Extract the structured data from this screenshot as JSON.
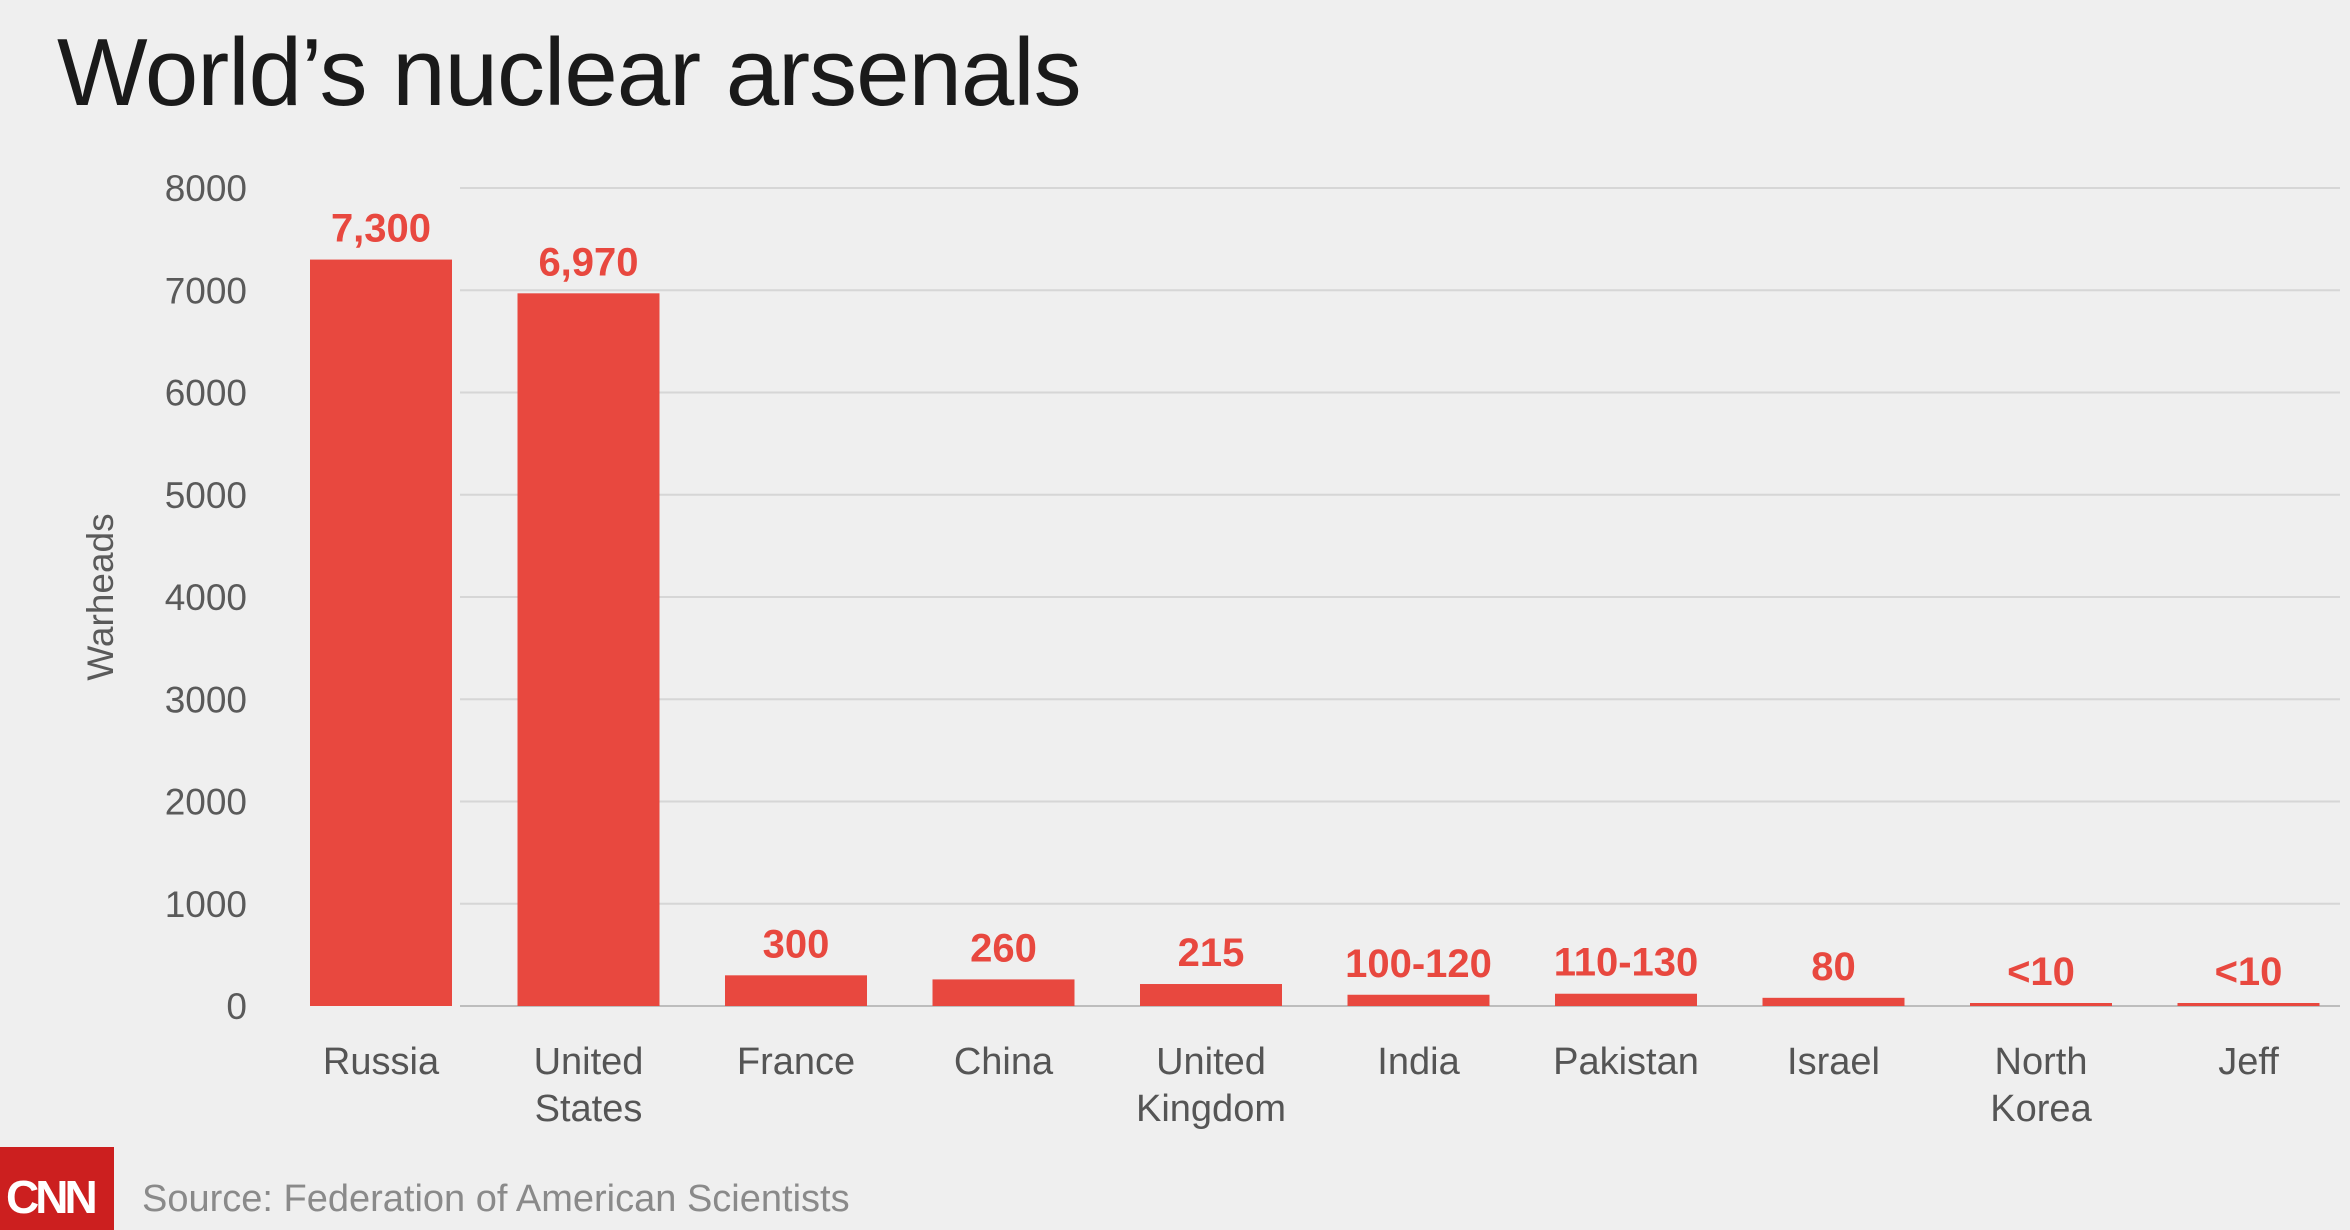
{
  "title": "World’s nuclear arsenals",
  "source": "Source: Federation of American Scientists",
  "logo": "CNN",
  "colors": {
    "bar": "#e8483f",
    "background": "#efefef",
    "logo": "#cc1f1f"
  },
  "chart_data": {
    "type": "bar",
    "ylabel": "Warheads",
    "xlabel": "",
    "ylim": [
      0,
      8000
    ],
    "yticks": [
      0,
      1000,
      2000,
      3000,
      4000,
      5000,
      6000,
      7000,
      8000
    ],
    "grid": true,
    "categories": [
      [
        "Russia"
      ],
      [
        "United",
        "States"
      ],
      [
        "France"
      ],
      [
        "China"
      ],
      [
        "United",
        "Kingdom"
      ],
      [
        "India"
      ],
      [
        "Pakistan"
      ],
      [
        "Israel"
      ],
      [
        "North",
        "Korea"
      ],
      [
        "Jeff"
      ]
    ],
    "values": [
      7300,
      6970,
      300,
      260,
      215,
      110,
      120,
      80,
      10,
      10
    ],
    "value_labels": [
      "7,300",
      "6,970",
      "300",
      "260",
      "215",
      "100-120",
      "110-130",
      "80",
      "<10",
      "<10"
    ]
  }
}
